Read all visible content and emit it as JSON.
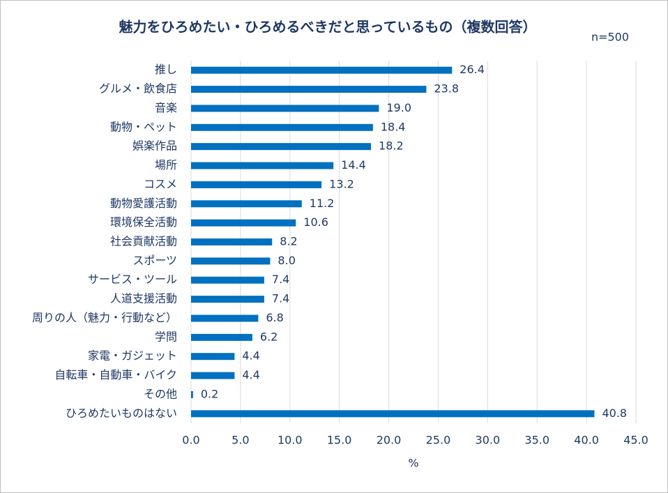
{
  "chart_data": {
    "type": "bar",
    "title": "魅力をひろめたい・ひろめるべきだと思っているもの（複数回答）",
    "annotation": "n=500",
    "x_label": "%",
    "categories": [
      "推し",
      "グルメ・飲食店",
      "音楽",
      "動物・ペット",
      "娯楽作品",
      "場所",
      "コスメ",
      "動物愛護活動",
      "環境保全活動",
      "社会貢献活動",
      "スポーツ",
      "サービス・ツール",
      "人道支援活動",
      "周りの人（魅力・行動など）",
      "学問",
      "家電・ガジェット",
      "自転車・自動車・バイク",
      "その他",
      "ひろめたいものはない"
    ],
    "values": [
      26.4,
      23.8,
      19.0,
      18.4,
      18.2,
      14.4,
      13.2,
      11.2,
      10.6,
      8.2,
      8.0,
      7.4,
      7.4,
      6.8,
      6.2,
      4.4,
      4.4,
      0.2,
      40.8
    ],
    "value_labels": [
      "26.4",
      "23.8",
      "19.0",
      "18.4",
      "18.2",
      "14.4",
      "13.2",
      "11.2",
      "10.6",
      "8.2",
      "8.0",
      "7.4",
      "7.4",
      "6.8",
      "6.2",
      "4.4",
      "4.4",
      "0.2",
      "40.8"
    ],
    "color": "#0070c0",
    "xlim": [
      0,
      45
    ],
    "xticks": [
      {
        "value": 0,
        "label": "0.0"
      },
      {
        "value": 5,
        "label": "5.0"
      },
      {
        "value": 10,
        "label": "10.0"
      },
      {
        "value": 15,
        "label": "15.0"
      },
      {
        "value": 20,
        "label": "20.0"
      },
      {
        "value": 25,
        "label": "25.0"
      },
      {
        "value": 30,
        "label": "30.0"
      },
      {
        "value": 35,
        "label": "35.0"
      },
      {
        "value": 40,
        "label": "40.0"
      },
      {
        "value": 45,
        "label": "45.0"
      }
    ],
    "grid": true
  }
}
